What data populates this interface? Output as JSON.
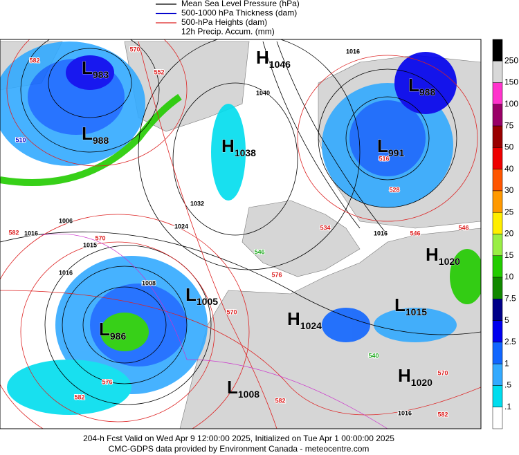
{
  "legend": [
    {
      "label": "Mean Sea Level Pressure (hPa)",
      "color": "#000000"
    },
    {
      "label": "500-1000 hPa Thickness (dam)",
      "color": "#0000cc"
    },
    {
      "label": "500-hPa Heights (dam)",
      "color": "#dd2222"
    },
    {
      "label": "12h Precip. Accum. (mm)",
      "color": null
    }
  ],
  "pressure_centers": [
    {
      "letter": "L",
      "value": "983"
    },
    {
      "letter": "L",
      "value": "988"
    },
    {
      "letter": "H",
      "value": "1046"
    },
    {
      "letter": "L",
      "value": "988"
    },
    {
      "letter": "H",
      "value": "1038"
    },
    {
      "letter": "L",
      "value": "991"
    },
    {
      "letter": "H",
      "value": "1020"
    },
    {
      "letter": "L",
      "value": "1005"
    },
    {
      "letter": "L",
      "value": "1015"
    },
    {
      "letter": "H",
      "value": "1024"
    },
    {
      "letter": "L",
      "value": "986"
    },
    {
      "letter": "H",
      "value": "1020"
    },
    {
      "letter": "L",
      "value": "1008"
    }
  ],
  "contour_labels": [
    {
      "text": "1006",
      "color": "#000000"
    },
    {
      "text": "1016",
      "color": "#000000"
    },
    {
      "text": "1015",
      "color": "#000000"
    },
    {
      "text": "1016",
      "color": "#000000"
    },
    {
      "text": "1024",
      "color": "#000000"
    },
    {
      "text": "1032",
      "color": "#000000"
    },
    {
      "text": "1040",
      "color": "#000000"
    },
    {
      "text": "1016",
      "color": "#000000"
    },
    {
      "text": "1016",
      "color": "#000000"
    },
    {
      "text": "1008",
      "color": "#000000"
    },
    {
      "text": "1016",
      "color": "#000000"
    },
    {
      "text": "510",
      "color": "#0000cc"
    },
    {
      "text": "582",
      "color": "#dd2222"
    },
    {
      "text": "570",
      "color": "#dd2222"
    },
    {
      "text": "552",
      "color": "#dd2222"
    },
    {
      "text": "582",
      "color": "#dd2222"
    },
    {
      "text": "570",
      "color": "#dd2222"
    },
    {
      "text": "570",
      "color": "#dd2222"
    },
    {
      "text": "576",
      "color": "#dd2222"
    },
    {
      "text": "582",
      "color": "#dd2222"
    },
    {
      "text": "576",
      "color": "#dd2222"
    },
    {
      "text": "582",
      "color": "#dd2222"
    },
    {
      "text": "570",
      "color": "#dd2222"
    },
    {
      "text": "582",
      "color": "#dd2222"
    },
    {
      "text": "546",
      "color": "#dd2222"
    },
    {
      "text": "528",
      "color": "#dd2222"
    },
    {
      "text": "546",
      "color": "#dd2222"
    },
    {
      "text": "516",
      "color": "#dd2222"
    },
    {
      "text": "534",
      "color": "#dd2222"
    },
    {
      "text": "546",
      "color": "#22aa22"
    },
    {
      "text": "540",
      "color": "#22aa22"
    }
  ],
  "colorbar": {
    "colors": [
      "#000000",
      "#d8d8d8",
      "#ff33cc",
      "#990066",
      "#990000",
      "#ee0000",
      "#ff5500",
      "#ff9900",
      "#ffee00",
      "#99ee44",
      "#22cc00",
      "#118800",
      "#000088",
      "#0000ee",
      "#1166ff",
      "#33aaff",
      "#00ddee",
      "#ffffff"
    ],
    "labels": [
      "250",
      "150",
      "100",
      "75",
      "50",
      "40",
      "30",
      "25",
      "20",
      "15",
      "10",
      "7.5",
      "5",
      "2.5",
      "1",
      ".5",
      ".1"
    ]
  },
  "footer": [
    "204-h Fcst Valid on Wed Apr  9 12:00:00 2025, Initialized on Tue Apr  1 00:00:00 2025",
    "CMC-GDPS data provided by Environment Canada - meteocentre.com"
  ]
}
